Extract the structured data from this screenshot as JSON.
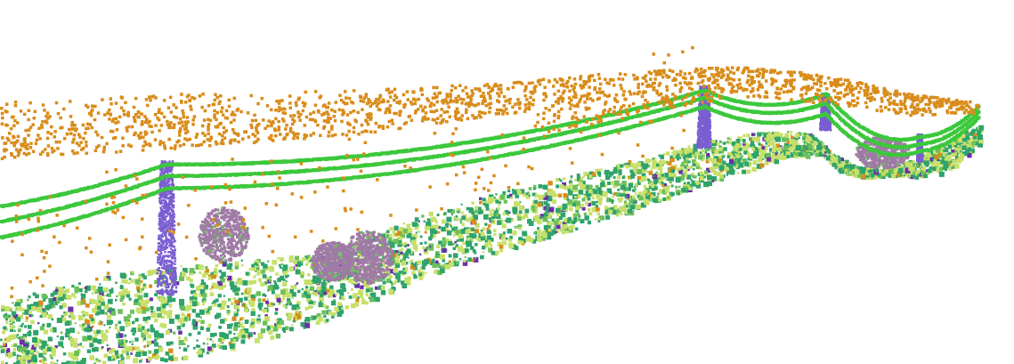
{
  "scene": {
    "kind": "classified lidar point cloud of a power line corridor",
    "background_color": "#ffffff",
    "class_colors": {
      "noise_points": "#d98c1a",
      "conductor_wires": "#3cc83c",
      "pylons": "#7a5ed1",
      "tall_vegetation": "#a07aa6",
      "ground_yellow": "#c7e06a",
      "ground_green": "#2ea36b",
      "ground_mid": "#6cc05b",
      "ground_accent": "#6a2fa8"
    },
    "counts": {
      "pylons": 4,
      "conductors": 3,
      "trees": 4
    }
  }
}
